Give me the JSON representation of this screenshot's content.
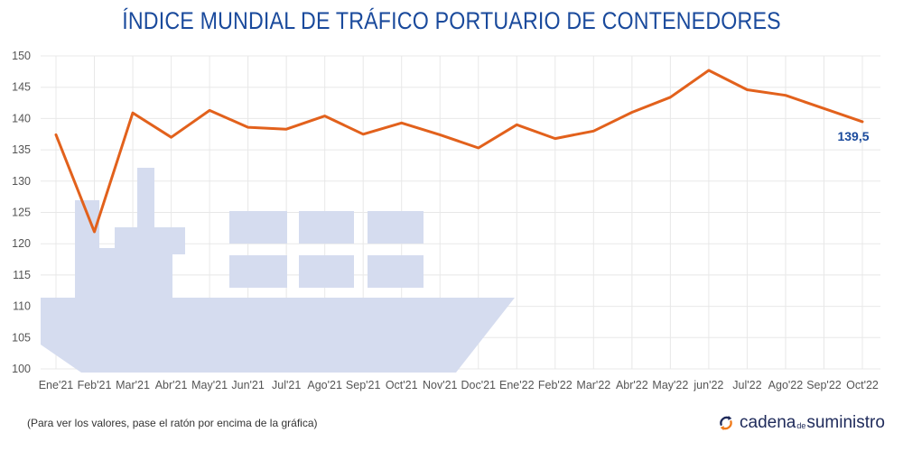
{
  "chart_data": {
    "type": "line",
    "title": "ÍNDICE MUNDIAL DE TRÁFICO PORTUARIO DE CONTENEDORES",
    "categories": [
      "Ene'21",
      "Feb'21",
      "Mar'21",
      "Abr'21",
      "May'21",
      "Jun'21",
      "Jul'21",
      "Ago'21",
      "Sep'21",
      "Oct'21",
      "Nov'21",
      "Doc'21",
      "Ene'22",
      "Feb'22",
      "Mar'22",
      "Abr'22",
      "May'22",
      "jun'22",
      "Jul'22",
      "Ago'22",
      "Sep'22",
      "Oct'22"
    ],
    "series": [
      {
        "values": [
          137.4,
          121.9,
          140.9,
          137.0,
          141.3,
          138.6,
          138.3,
          140.4,
          137.5,
          139.3,
          137.4,
          135.3,
          139.0,
          136.8,
          138.0,
          141.0,
          143.4,
          147.7,
          144.6,
          143.7,
          141.6,
          139.5
        ]
      }
    ],
    "last_value_label": "139,5",
    "ylim": [
      100,
      150
    ],
    "yticks": [
      100,
      105,
      110,
      115,
      120,
      125,
      130,
      135,
      140,
      145,
      150
    ],
    "grid": true,
    "colors": {
      "line": "#e2611c",
      "title": "#1a4a9c",
      "ship": "#d5dcef",
      "grid": "#e8e8e8"
    }
  },
  "footer": {
    "note": "(Para ver los valores, pase el ratón por encima de la gráfica)",
    "brand_part1": "cadena",
    "brand_part2": "de",
    "brand_part3": "suministro"
  }
}
